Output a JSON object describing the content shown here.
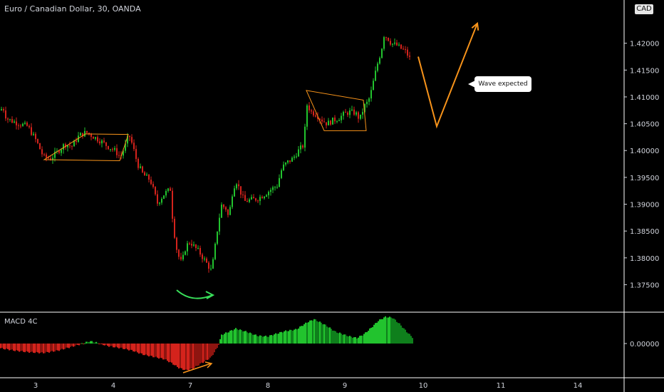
{
  "header": {
    "title": "Euro / Canadian Dollar, 30, OANDA"
  },
  "currency_badge": "CAD",
  "callout_text": "Wave expected",
  "indicator": {
    "name": "MACD 4C"
  },
  "colors": {
    "up": "#22c32e",
    "down": "#d4231c",
    "annotation": "#f7931a",
    "arrow_green": "#39e05a",
    "grid": "#ffffff",
    "bg": "#000000"
  },
  "chart_data": {
    "type": "candlestick",
    "title": "Euro / Canadian Dollar, 30, OANDA",
    "price_axis": {
      "ticks": [
        "1.42000",
        "1.41500",
        "1.41000",
        "1.40500",
        "1.40000",
        "1.39500",
        "1.39000",
        "1.38500",
        "1.38000",
        "1.37500"
      ],
      "range": [
        1.3728,
        1.4262
      ]
    },
    "macd_axis": {
      "ticks": [
        "0.00000"
      ]
    },
    "x_axis": {
      "labels": [
        "3",
        "4",
        "7",
        "8",
        "9",
        "10",
        "11",
        "14"
      ]
    },
    "price_path": [
      [
        0,
        1.4075
      ],
      [
        3,
        1.4082
      ],
      [
        8,
        1.406
      ],
      [
        16,
        1.4055
      ],
      [
        26,
        1.405
      ],
      [
        38,
        1.4045
      ],
      [
        50,
        1.4018
      ],
      [
        60,
        1.3988
      ],
      [
        70,
        1.3985
      ],
      [
        80,
        1.3998
      ],
      [
        90,
        1.4012
      ],
      [
        100,
        1.4008
      ],
      [
        110,
        1.4028
      ],
      [
        120,
        1.4034
      ],
      [
        130,
        1.4026
      ],
      [
        140,
        1.4018
      ],
      [
        150,
        1.4008
      ],
      [
        160,
        1.4
      ],
      [
        168,
        1.3988
      ],
      [
        175,
        1.401
      ],
      [
        180,
        1.403
      ],
      [
        185,
        1.401
      ],
      [
        192,
        1.3975
      ],
      [
        200,
        1.3955
      ],
      [
        210,
        1.3945
      ],
      [
        220,
        1.3902
      ],
      [
        230,
        1.392
      ],
      [
        238,
        1.3928
      ],
      [
        242,
        1.386
      ],
      [
        248,
        1.3808
      ],
      [
        254,
        1.379
      ],
      [
        260,
        1.3822
      ],
      [
        266,
        1.383
      ],
      [
        272,
        1.382
      ],
      [
        278,
        1.3812
      ],
      [
        284,
        1.38
      ],
      [
        290,
        1.3788
      ],
      [
        296,
        1.3775
      ],
      [
        300,
        1.3812
      ],
      [
        305,
        1.3862
      ],
      [
        310,
        1.3898
      ],
      [
        316,
        1.3892
      ],
      [
        320,
        1.3875
      ],
      [
        325,
        1.392
      ],
      [
        330,
        1.3945
      ],
      [
        336,
        1.3925
      ],
      [
        342,
        1.3905
      ],
      [
        350,
        1.3908
      ],
      [
        360,
        1.391
      ],
      [
        370,
        1.3918
      ],
      [
        380,
        1.3928
      ],
      [
        388,
        1.3935
      ],
      [
        395,
        1.3968
      ],
      [
        402,
        1.3978
      ],
      [
        410,
        1.3985
      ],
      [
        418,
        1.4
      ],
      [
        425,
        1.401
      ],
      [
        430,
        1.4085
      ],
      [
        436,
        1.4072
      ],
      [
        442,
        1.4068
      ],
      [
        450,
        1.4058
      ],
      [
        458,
        1.405
      ],
      [
        466,
        1.4056
      ],
      [
        474,
        1.406
      ],
      [
        482,
        1.4068
      ],
      [
        490,
        1.4072
      ],
      [
        498,
        1.407
      ],
      [
        504,
        1.4058
      ],
      [
        510,
        1.4082
      ],
      [
        516,
        1.4092
      ],
      [
        520,
        1.411
      ],
      [
        525,
        1.414
      ],
      [
        530,
        1.4168
      ],
      [
        534,
        1.4185
      ],
      [
        538,
        1.4215
      ],
      [
        543,
        1.421
      ],
      [
        548,
        1.42
      ],
      [
        556,
        1.4196
      ],
      [
        562,
        1.419
      ],
      [
        568,
        1.4185
      ],
      [
        574,
        1.4172
      ]
    ],
    "macd_path": [
      [
        0,
        -0.0006
      ],
      [
        20,
        -0.0009
      ],
      [
        40,
        -0.0011
      ],
      [
        60,
        -0.0012
      ],
      [
        80,
        -0.0009
      ],
      [
        100,
        -0.0004
      ],
      [
        115,
        0.0
      ],
      [
        125,
        0.0003
      ],
      [
        135,
        0.0001
      ],
      [
        150,
        -0.0003
      ],
      [
        170,
        -0.0006
      ],
      [
        185,
        -0.0009
      ],
      [
        200,
        -0.0014
      ],
      [
        215,
        -0.0017
      ],
      [
        230,
        -0.002
      ],
      [
        240,
        -0.0025
      ],
      [
        250,
        -0.0031
      ],
      [
        260,
        -0.0034
      ],
      [
        270,
        -0.0032
      ],
      [
        280,
        -0.0026
      ],
      [
        295,
        -0.0018
      ],
      [
        305,
        -0.0004
      ],
      [
        310,
        0.0011
      ],
      [
        320,
        0.0015
      ],
      [
        330,
        0.0019
      ],
      [
        345,
        0.0015
      ],
      [
        360,
        0.001
      ],
      [
        375,
        0.0009
      ],
      [
        385,
        0.0012
      ],
      [
        400,
        0.0016
      ],
      [
        415,
        0.0018
      ],
      [
        430,
        0.0027
      ],
      [
        440,
        0.0031
      ],
      [
        455,
        0.0024
      ],
      [
        470,
        0.0015
      ],
      [
        490,
        0.0009
      ],
      [
        500,
        0.0007
      ],
      [
        510,
        0.0012
      ],
      [
        520,
        0.002
      ],
      [
        530,
        0.0029
      ],
      [
        540,
        0.0034
      ],
      [
        550,
        0.0033
      ],
      [
        560,
        0.0025
      ],
      [
        570,
        0.0015
      ],
      [
        578,
        0.0008
      ]
    ],
    "annotations": [
      {
        "type": "channel",
        "points": [
          [
            62,
            1.3983
          ],
          [
            120,
            1.4031
          ],
          [
            180,
            1.403
          ],
          [
            168,
            1.3981
          ]
        ]
      },
      {
        "type": "channel",
        "points": [
          [
            430,
            1.4112
          ],
          [
            510,
            1.4094
          ],
          [
            514,
            1.4037
          ],
          [
            455,
            1.4037
          ]
        ]
      },
      {
        "type": "projection",
        "points": [
          [
            587,
            1.4175
          ],
          [
            613,
            1.4045
          ],
          [
            670,
            1.4237
          ]
        ]
      }
    ]
  }
}
